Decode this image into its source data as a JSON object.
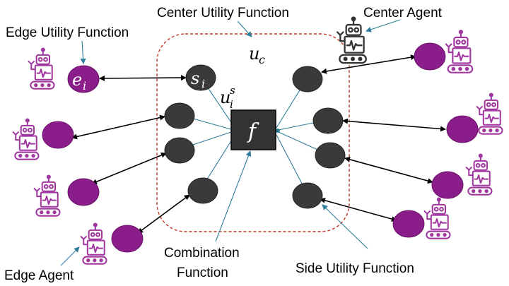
{
  "labels": {
    "center_utility_function": "Center Utility Function",
    "center_agent": "Center Agent",
    "edge_utility_function": "Edge Utility Function",
    "combination_function_line1": "Combination",
    "combination_function_line2": "Function",
    "side_utility_function": "Side Utility Function",
    "edge_agent": "Edge Agent"
  },
  "math": {
    "center_utility_symbol": "u",
    "center_utility_sub": "c",
    "edge_utility_symbol": "e",
    "edge_utility_sub": "i",
    "side_node_symbol": "s",
    "side_node_sub": "i",
    "side_utility_symbol": "u",
    "side_utility_sub": "i",
    "side_utility_sup": "s",
    "combination_symbol": "f"
  },
  "colors": {
    "edge_node": "#8b1d8b",
    "side_node": "#3a3a3a",
    "combination_box": "#333333",
    "robot": "#a0379f",
    "center_robot": "#333333",
    "boundary": "#c0392b",
    "connector": "#2e7d9a",
    "arrow": "#000000"
  }
}
